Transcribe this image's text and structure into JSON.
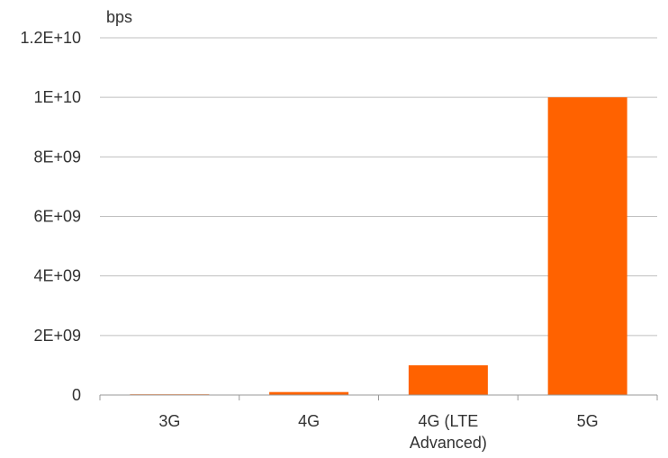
{
  "chart_data": {
    "type": "bar",
    "ylabel": "bps",
    "categories": [
      "3G",
      "4G",
      "4G (LTE Advanced)",
      "5G"
    ],
    "category_lines": [
      [
        "3G"
      ],
      [
        "4G"
      ],
      [
        "4G (LTE",
        "Advanced)"
      ],
      [
        "5G"
      ]
    ],
    "series": [
      {
        "values": [
          2000000,
          100000000,
          1000000000,
          10000000000
        ]
      }
    ],
    "ylim": [
      0,
      12000000000
    ],
    "yticks": [
      0,
      2000000000,
      4000000000,
      6000000000,
      8000000000,
      10000000000,
      12000000000
    ],
    "ytick_labels": [
      "0",
      "2E+09",
      "4E+09",
      "6E+09",
      "8E+09",
      "1E+10",
      "1.2E+10"
    ],
    "grid": true,
    "bar_color": "#FF6200",
    "grid_color": "#BFBFBF",
    "axis_color": "#999999",
    "text_color": "#333333"
  }
}
